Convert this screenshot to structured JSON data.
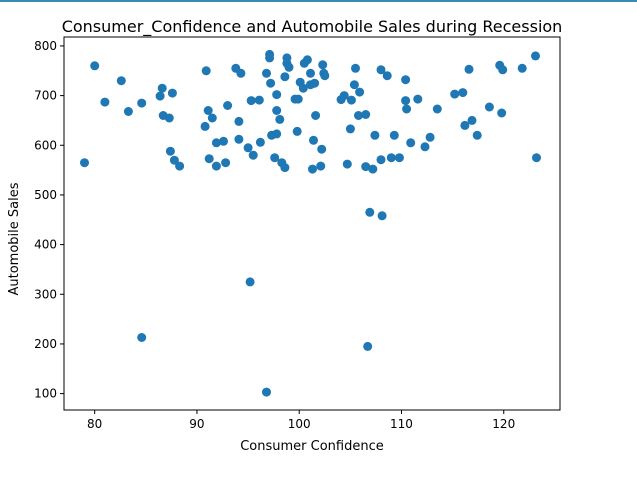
{
  "chart_data": {
    "type": "scatter",
    "title": "Consumer_Confidence and Automobile Sales during Recession",
    "xlabel": "Consumer Confidence",
    "ylabel": "Automobile Sales",
    "xlim": [
      77,
      125.5
    ],
    "ylim": [
      67,
      818
    ],
    "xticks": [
      80,
      90,
      100,
      110,
      120
    ],
    "yticks": [
      100,
      200,
      300,
      400,
      500,
      600,
      700,
      800
    ],
    "marker_color": "#1f77b4",
    "grid": false,
    "points": [
      [
        79.0,
        565
      ],
      [
        80.0,
        760
      ],
      [
        81.0,
        687
      ],
      [
        82.6,
        730
      ],
      [
        83.3,
        668
      ],
      [
        84.6,
        685
      ],
      [
        84.6,
        213
      ],
      [
        86.4,
        699
      ],
      [
        86.6,
        715
      ],
      [
        86.7,
        660
      ],
      [
        87.3,
        655
      ],
      [
        87.4,
        588
      ],
      [
        87.6,
        705
      ],
      [
        87.8,
        570
      ],
      [
        88.3,
        558
      ],
      [
        90.8,
        638
      ],
      [
        90.9,
        750
      ],
      [
        91.1,
        670
      ],
      [
        91.2,
        573
      ],
      [
        91.5,
        655
      ],
      [
        91.9,
        605
      ],
      [
        91.9,
        558
      ],
      [
        92.6,
        608
      ],
      [
        92.8,
        565
      ],
      [
        93.0,
        680
      ],
      [
        93.8,
        755
      ],
      [
        94.1,
        648
      ],
      [
        94.1,
        612
      ],
      [
        94.3,
        745
      ],
      [
        95.0,
        595
      ],
      [
        95.3,
        690
      ],
      [
        95.2,
        325
      ],
      [
        95.5,
        580
      ],
      [
        96.1,
        691
      ],
      [
        96.2,
        606
      ],
      [
        96.8,
        745
      ],
      [
        97.1,
        783
      ],
      [
        97.1,
        776
      ],
      [
        97.2,
        725
      ],
      [
        97.3,
        620
      ],
      [
        97.6,
        575
      ],
      [
        97.8,
        702
      ],
      [
        97.8,
        670
      ],
      [
        97.8,
        623
      ],
      [
        98.1,
        652
      ],
      [
        98.3,
        565
      ],
      [
        98.6,
        738
      ],
      [
        98.6,
        555
      ],
      [
        98.8,
        776
      ],
      [
        98.8,
        765
      ],
      [
        99.0,
        757
      ],
      [
        99.6,
        693
      ],
      [
        99.8,
        628
      ],
      [
        99.9,
        693
      ],
      [
        100.1,
        727
      ],
      [
        100.4,
        715
      ],
      [
        100.5,
        765
      ],
      [
        100.8,
        772
      ],
      [
        101.1,
        745
      ],
      [
        101.1,
        722
      ],
      [
        101.3,
        552
      ],
      [
        101.4,
        610
      ],
      [
        101.5,
        725
      ],
      [
        101.6,
        660
      ],
      [
        102.1,
        558
      ],
      [
        102.2,
        592
      ],
      [
        102.3,
        762
      ],
      [
        102.4,
        745
      ],
      [
        102.5,
        740
      ],
      [
        96.8,
        103
      ],
      [
        104.1,
        692
      ],
      [
        104.4,
        700
      ],
      [
        104.7,
        562
      ],
      [
        105.0,
        633
      ],
      [
        105.1,
        691
      ],
      [
        105.4,
        722
      ],
      [
        105.5,
        755
      ],
      [
        105.8,
        660
      ],
      [
        105.9,
        707
      ],
      [
        106.5,
        557
      ],
      [
        106.5,
        662
      ],
      [
        106.7,
        195
      ],
      [
        106.9,
        465
      ],
      [
        107.2,
        552
      ],
      [
        107.4,
        620
      ],
      [
        108.0,
        752
      ],
      [
        108.0,
        571
      ],
      [
        108.1,
        458
      ],
      [
        108.6,
        740
      ],
      [
        109.0,
        575
      ],
      [
        109.3,
        620
      ],
      [
        109.8,
        575
      ],
      [
        110.4,
        732
      ],
      [
        110.4,
        690
      ],
      [
        110.5,
        673
      ],
      [
        110.9,
        605
      ],
      [
        111.6,
        693
      ],
      [
        112.3,
        597
      ],
      [
        112.8,
        616
      ],
      [
        113.5,
        673
      ],
      [
        115.2,
        703
      ],
      [
        116.0,
        706
      ],
      [
        116.2,
        640
      ],
      [
        116.6,
        753
      ],
      [
        116.9,
        650
      ],
      [
        117.4,
        620
      ],
      [
        118.6,
        677
      ],
      [
        119.6,
        761
      ],
      [
        119.9,
        752
      ],
      [
        119.8,
        665
      ],
      [
        121.8,
        755
      ],
      [
        123.1,
        780
      ],
      [
        123.2,
        575
      ]
    ]
  }
}
